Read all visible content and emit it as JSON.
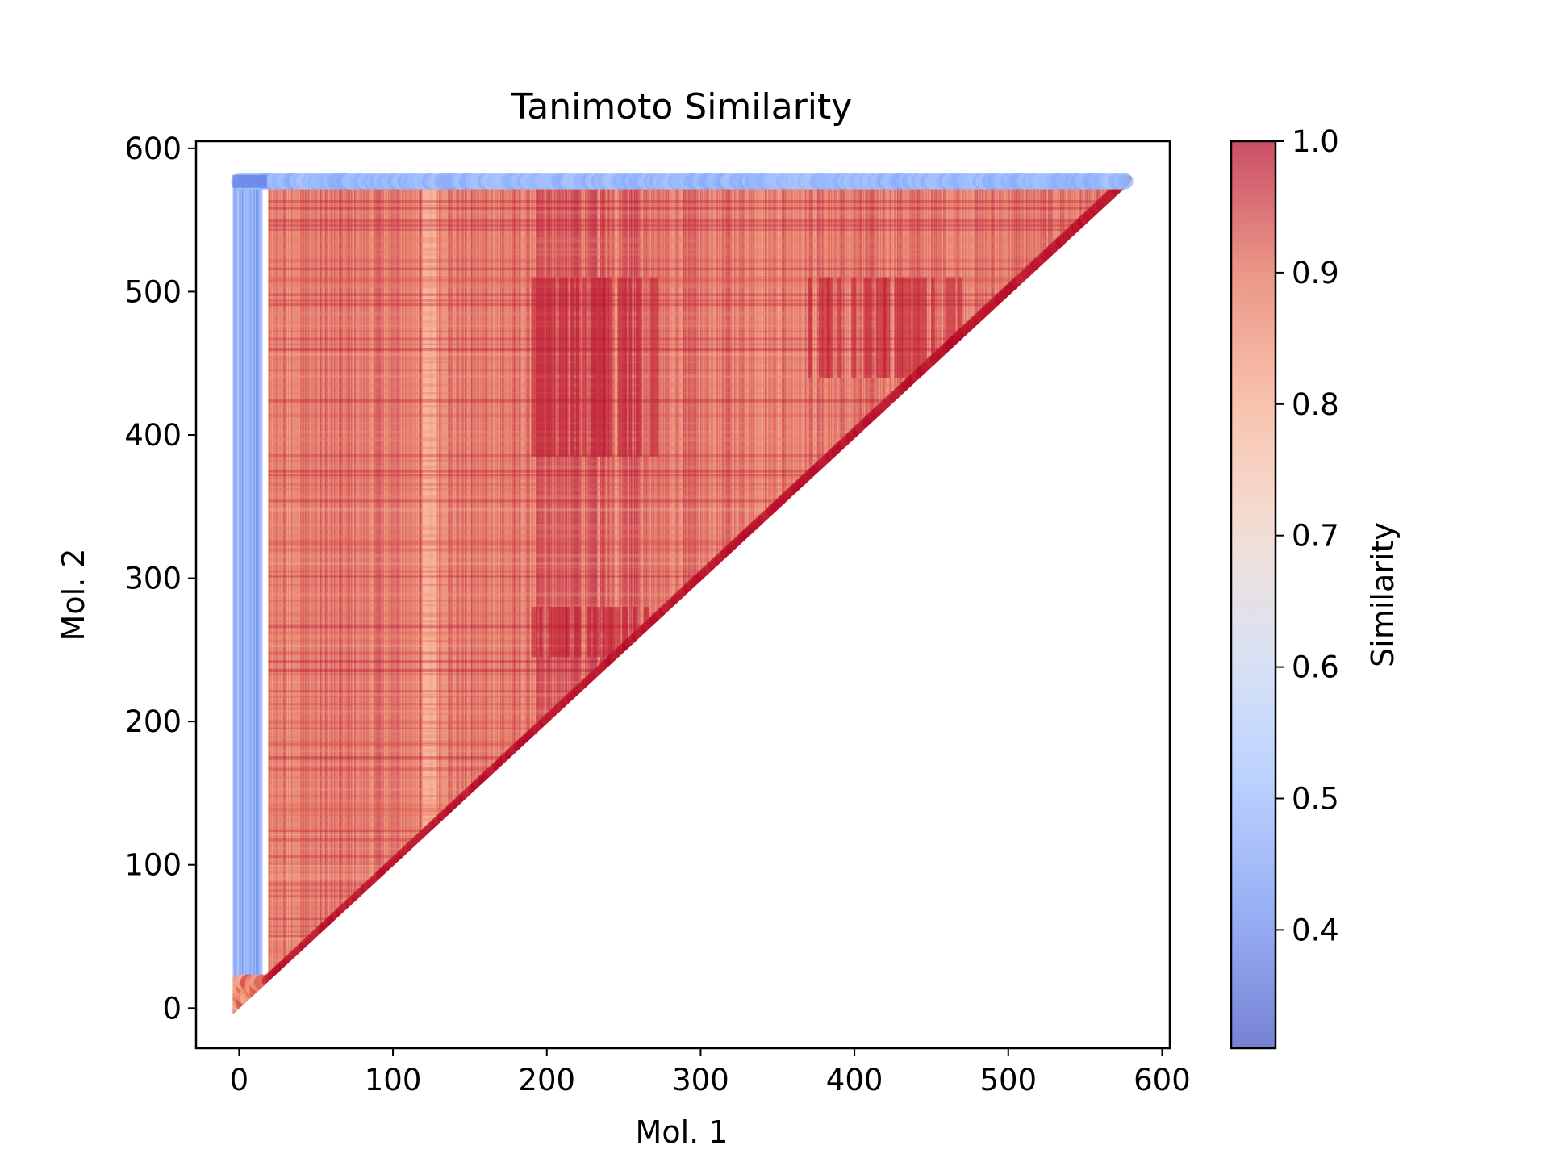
{
  "chart_data": {
    "type": "scatter",
    "title": "Tanimoto Similarity",
    "xlabel": "Mol. 1",
    "ylabel": "Mol. 2",
    "xlim": [
      -28,
      605
    ],
    "ylim": [
      -28,
      605
    ],
    "xticks": [
      0,
      100,
      200,
      300,
      400,
      500,
      600
    ],
    "yticks": [
      0,
      100,
      200,
      300,
      400,
      500,
      600
    ],
    "grid": false,
    "n_molecules": 577,
    "description_of_points": "upper triangle of pairwise similarity matrix: points (i, j) for j >= i",
    "colormap": {
      "name": "coolwarm",
      "alpha": 0.7,
      "stops": [
        "#3b4cc0",
        "#6a8bef",
        "#9abbff",
        "#c9d7f0",
        "#edd1c2",
        "#f7a889",
        "#e26952",
        "#b40426"
      ]
    },
    "colorbar": {
      "label": "Similarity",
      "min": 0.31,
      "max": 1.0,
      "ticks": [
        "0.4",
        "0.5",
        "0.6",
        "0.7",
        "0.8",
        "0.9",
        "1.0"
      ],
      "tick_values": [
        0.4,
        0.5,
        0.6,
        0.7,
        0.8,
        0.9,
        1.0
      ]
    },
    "regions": [
      {
        "name": "low-similarity block (molecules 0-18 vs 19-577)",
        "value_range": [
          0.38,
          0.5
        ]
      },
      {
        "name": "top row (molecule ~577 vs all)",
        "value_range": [
          0.47,
          0.55
        ]
      },
      {
        "name": "small cluster 0-18",
        "value_range": [
          0.75,
          0.95
        ]
      },
      {
        "name": "main body (molecules 19-577)",
        "value_range": [
          0.8,
          0.98
        ]
      },
      {
        "name": "diagonal",
        "value": 1.0
      }
    ]
  }
}
